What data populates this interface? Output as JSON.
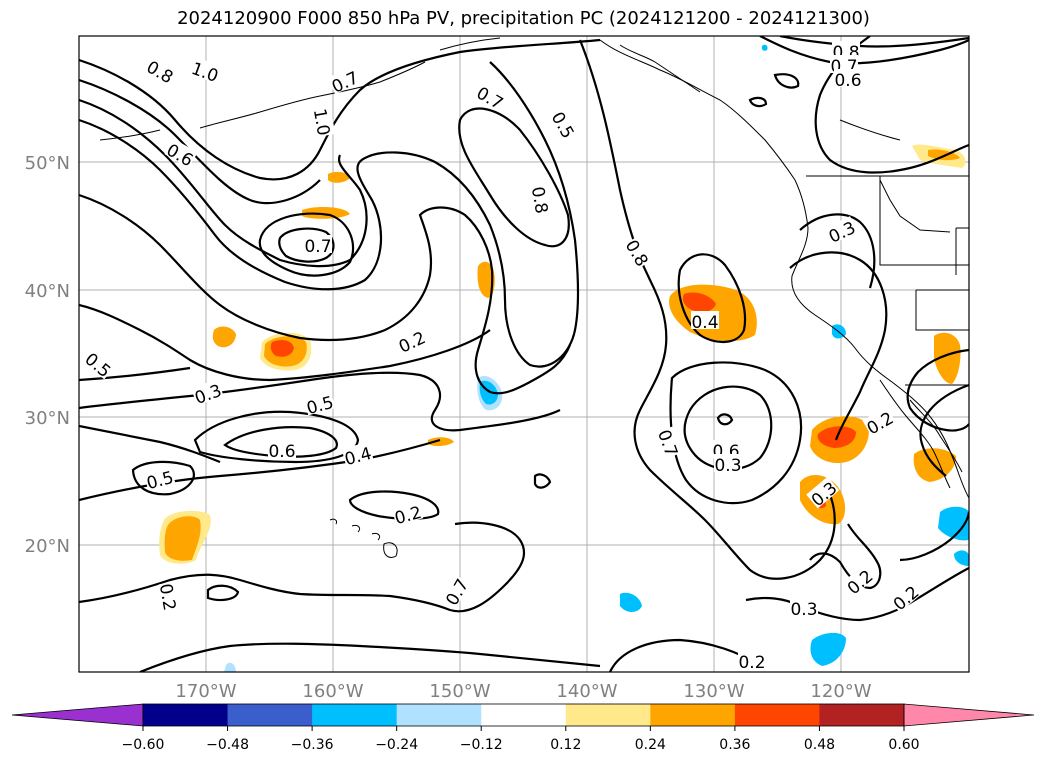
{
  "title": "2024120900 F000 850 hPa PV, precipitation PC (2024121200 - 2024121300)",
  "map": {
    "lat_labels": [
      "50°N",
      "40°N",
      "30°N",
      "20°N"
    ],
    "lon_labels": [
      "170°W",
      "160°W",
      "150°W",
      "140°W",
      "130°W",
      "120°W"
    ],
    "extent": {
      "lon_min": -180,
      "lon_max": -110,
      "lat_min": 10,
      "lat_max": 60
    },
    "gridlines": true,
    "contour_labels": [
      "0.8",
      "1.0",
      "0.7",
      "1.0",
      "0.6",
      "0.7",
      "0.8",
      "0.7",
      "0.5",
      "0.8",
      "0.2",
      "0.5",
      "0.3",
      "0.5",
      "0.6",
      "0.4",
      "0.2",
      "0.5",
      "0.2",
      "0.7",
      "0.4",
      "0.7",
      "0.6",
      "0.3",
      "0.3",
      "0.2",
      "0.3",
      "0.2",
      "0.2",
      "0.3",
      "0.8",
      "0.7",
      "0.6",
      "0.2"
    ]
  },
  "colorbar": {
    "tick_labels": [
      "−0.60",
      "−0.48",
      "−0.36",
      "−0.24",
      "−0.12",
      "0.12",
      "0.24",
      "0.36",
      "0.48",
      "0.60"
    ],
    "colors": [
      "#9b30d0",
      "#00008b",
      "#3a5fcd",
      "#00bfff",
      "#b0e2ff",
      "#ffffff",
      "#ffe98a",
      "#ffa500",
      "#ff4500",
      "#b22222",
      "#ff88aa"
    ],
    "extend": "both"
  },
  "colors": {
    "precip_light": "#ffe98a",
    "precip_orange": "#ffa500",
    "precip_red": "#ff4500",
    "neg_cyan": "#00bfff",
    "neg_light": "#b0e2ff"
  }
}
